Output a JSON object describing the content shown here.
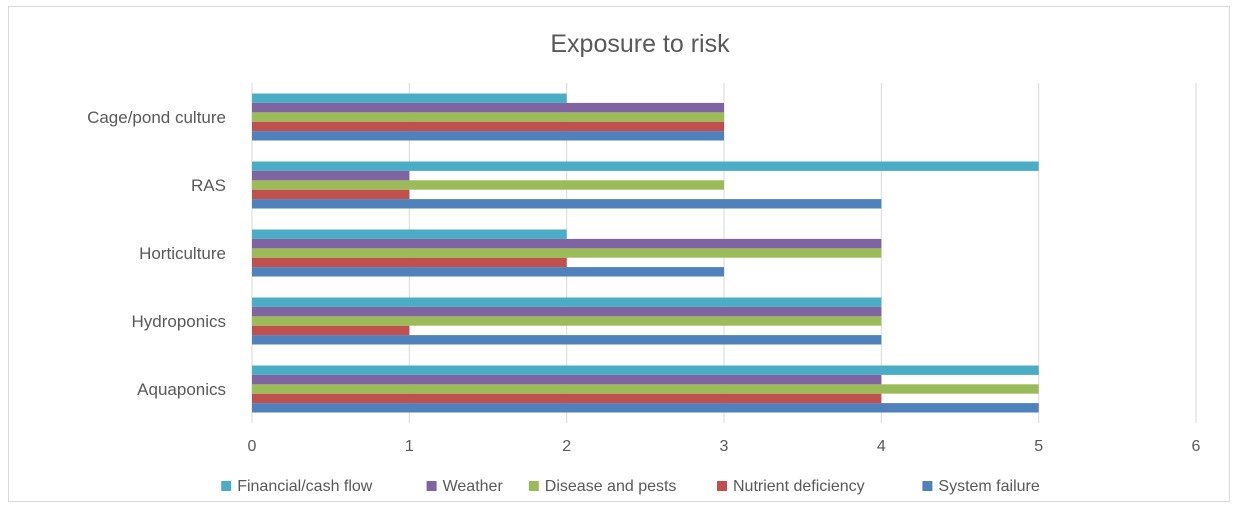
{
  "chart_data": {
    "type": "bar",
    "orientation": "horizontal",
    "title": "Exposure to risk",
    "categories": [
      "Aquaponics",
      "Hydroponics",
      "Horticulture",
      "RAS",
      "Cage/pond culture"
    ],
    "series": [
      {
        "name": "System failure",
        "color": "#4f81bd",
        "values": [
          5,
          4,
          3,
          4,
          3
        ]
      },
      {
        "name": "Nutrient deficiency",
        "color": "#c0504d",
        "values": [
          4,
          1,
          2,
          1,
          3
        ]
      },
      {
        "name": "Disease and pests",
        "color": "#9bbb59",
        "values": [
          5,
          4,
          4,
          3,
          3
        ]
      },
      {
        "name": "Weather",
        "color": "#8064a2",
        "values": [
          4,
          4,
          4,
          1,
          3
        ]
      },
      {
        "name": "Financial/cash flow",
        "color": "#4bacc6",
        "values": [
          5,
          4,
          2,
          5,
          2
        ]
      }
    ],
    "legend_order": [
      "Financial/cash flow",
      "Weather",
      "Disease and pests",
      "Nutrient deficiency",
      "System failure"
    ],
    "xlim": [
      0,
      6
    ],
    "xticks": [
      "0",
      "1",
      "2",
      "3",
      "4",
      "5",
      "6"
    ],
    "grid": true,
    "legend_position": "bottom"
  }
}
